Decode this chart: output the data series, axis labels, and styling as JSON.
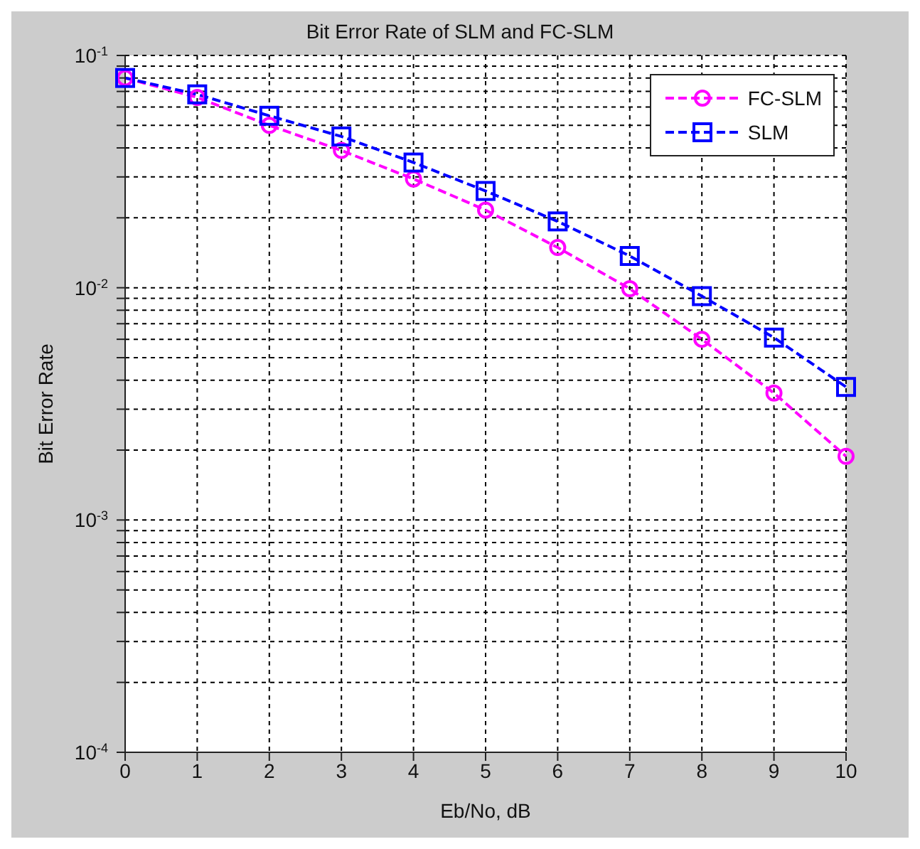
{
  "chart_data": {
    "type": "line",
    "title": "Bit Error Rate of SLM and FC-SLM",
    "xlabel": "Eb/No, dB",
    "ylabel": "Bit Error Rate",
    "x": [
      0,
      1,
      2,
      3,
      4,
      5,
      6,
      7,
      8,
      9,
      10
    ],
    "series": [
      {
        "name": "FC-SLM",
        "color": "#ff00ff",
        "marker": "circle",
        "values": [
          0.08,
          0.066,
          0.05,
          0.039,
          0.0294,
          0.0216,
          0.0149,
          0.0099,
          0.006,
          0.00352,
          0.00188
        ]
      },
      {
        "name": "SLM",
        "color": "#0000ff",
        "marker": "square",
        "values": [
          0.08,
          0.068,
          0.055,
          0.0448,
          0.0346,
          0.0261,
          0.0193,
          0.0137,
          0.0092,
          0.0061,
          0.00374
        ]
      }
    ],
    "log": true,
    "xlim": [
      0,
      10
    ],
    "xticks": [
      0,
      1,
      2,
      3,
      4,
      5,
      6,
      7,
      8,
      9,
      10
    ],
    "ylim": [
      0.0001,
      0.1
    ],
    "yticks": [
      {
        "value": 0.0001,
        "label": "10$^{-4}$"
      },
      {
        "value": 0.0002,
        "label": null
      },
      {
        "value": 0.0003,
        "label": null
      },
      {
        "value": 0.0004,
        "label": null
      },
      {
        "value": 0.0005,
        "label": null
      },
      {
        "value": 0.0006,
        "label": null
      },
      {
        "value": 0.0007,
        "label": null
      },
      {
        "value": 0.0008,
        "label": null
      },
      {
        "value": 0.0009,
        "label": null
      },
      {
        "value": 0.001,
        "label": "10$^{-3}$"
      },
      {
        "value": 0.002,
        "label": null
      },
      {
        "value": 0.003,
        "label": null
      },
      {
        "value": 0.004,
        "label": null
      },
      {
        "value": 0.005,
        "label": null
      },
      {
        "value": 0.006,
        "label": null
      },
      {
        "value": 0.007,
        "label": null
      },
      {
        "value": 0.008,
        "label": null
      },
      {
        "value": 0.009,
        "label": null
      },
      {
        "value": 0.01,
        "label": "10$^{-2}$"
      },
      {
        "value": 0.02,
        "label": null
      },
      {
        "value": 0.03,
        "label": null
      },
      {
        "value": 0.04,
        "label": null
      },
      {
        "value": 0.05,
        "label": null
      },
      {
        "value": 0.06,
        "label": null
      },
      {
        "value": 0.07,
        "label": null
      },
      {
        "value": 0.08,
        "label": null
      },
      {
        "value": 0.09,
        "label": null
      },
      {
        "value": 0.1,
        "label": "10$^{-1}$"
      }
    ],
    "grid": true,
    "legend": "top right",
    "line_style": "dashed"
  }
}
